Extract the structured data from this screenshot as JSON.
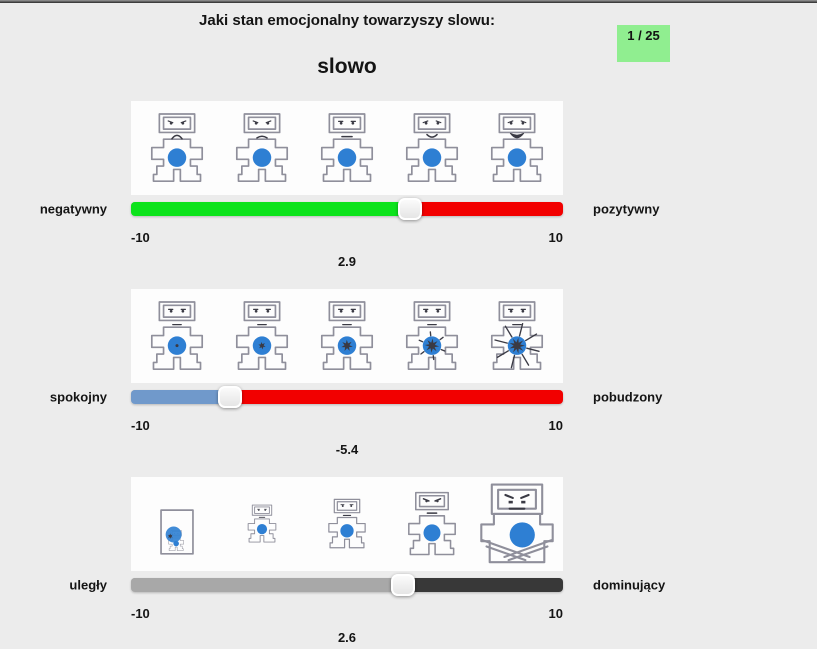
{
  "window": {
    "background": "#ececec",
    "top_border_color": "#2b2b2b"
  },
  "header": {
    "question": "Jaki stan emocjonalny towarzyszy slowu:",
    "word": "slowo",
    "progress": "1 / 25",
    "progress_bg": "#90ee90"
  },
  "manikin_colors": {
    "outline": "#8f8f9b",
    "belly_circle": "#2e7fd3",
    "ink": "#3a3a44"
  },
  "scales": [
    {
      "id": "valence",
      "left_label": "negatywny",
      "right_label": "pozytywny",
      "min": -10,
      "max": 10,
      "min_label": "-10",
      "max_label": "10",
      "value": 2.9,
      "value_label": "2.9",
      "left_color": "#0de31c",
      "right_color": "#f20000",
      "figures": [
        "sam-valence-1",
        "sam-valence-2",
        "sam-valence-3",
        "sam-valence-4",
        "sam-valence-5"
      ]
    },
    {
      "id": "arousal",
      "left_label": "spokojny",
      "right_label": "pobudzony",
      "min": -10,
      "max": 10,
      "min_label": "-10",
      "max_label": "10",
      "value": -5.4,
      "value_label": "-5.4",
      "left_color": "#7099cb",
      "right_color": "#f20000",
      "figures": [
        "sam-arousal-1",
        "sam-arousal-2",
        "sam-arousal-3",
        "sam-arousal-4",
        "sam-arousal-5"
      ]
    },
    {
      "id": "dominance",
      "left_label": "uległy",
      "right_label": "dominujący",
      "min": -10,
      "max": 10,
      "min_label": "-10",
      "max_label": "10",
      "value": 2.6,
      "value_label": "2.6",
      "left_color": "#a8a8a8",
      "right_color": "#383838",
      "figures": [
        "sam-dominance-1",
        "sam-dominance-2",
        "sam-dominance-3",
        "sam-dominance-4",
        "sam-dominance-5"
      ]
    }
  ]
}
